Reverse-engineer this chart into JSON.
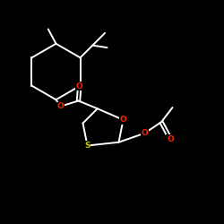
{
  "bg_color": "#000000",
  "bond_color": "#ffffff",
  "O_color": "#ff2200",
  "S_color": "#cccc00",
  "line_width": 1.4,
  "figsize": [
    2.5,
    2.5
  ],
  "dpi": 100,
  "xlim": [
    0,
    10
  ],
  "ylim": [
    0,
    10
  ]
}
